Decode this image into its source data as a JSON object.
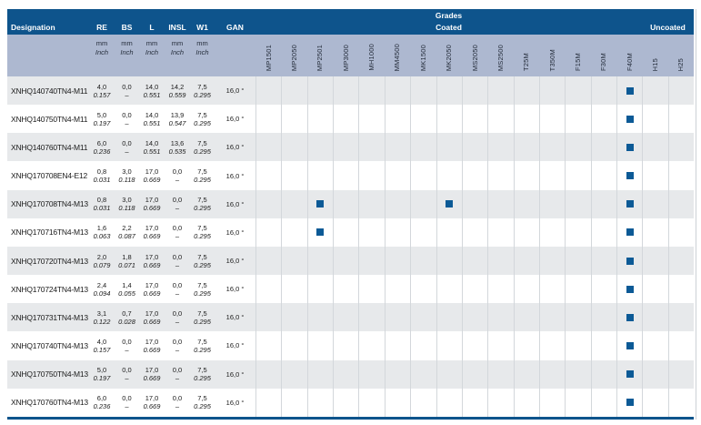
{
  "header": {
    "designation_label": "Designation",
    "dim_labels": [
      "RE",
      "BS",
      "L",
      "INSL",
      "W1"
    ],
    "gan_label": "GAN",
    "unit_mm": "mm",
    "unit_inch": "Inch",
    "grades_label": "Grades",
    "coated_label": "Coated",
    "uncoated_label": "Uncoated",
    "coated_grades": [
      "MP1501",
      "MP2050",
      "MP2501",
      "MP3000",
      "MH1000",
      "MM4500",
      "MK1500",
      "MK2050",
      "MS2050",
      "MS2500",
      "T25M",
      "T350M",
      "F15M",
      "F30M",
      "F40M"
    ],
    "uncoated_grades": [
      "H15",
      "H25"
    ]
  },
  "rows": [
    {
      "designation": "XNHQ140740TN4-M11",
      "dims": [
        {
          "mm": "4,0",
          "inch": "0.157"
        },
        {
          "mm": "0,0",
          "inch": "–"
        },
        {
          "mm": "14,0",
          "inch": "0.551"
        },
        {
          "mm": "14,2",
          "inch": "0.559"
        },
        {
          "mm": "7,5",
          "inch": "0.295"
        }
      ],
      "gan": "16,0 °",
      "marked_grades": [
        "F40M"
      ]
    },
    {
      "designation": "XNHQ140750TN4-M11",
      "dims": [
        {
          "mm": "5,0",
          "inch": "0.197"
        },
        {
          "mm": "0,0",
          "inch": "–"
        },
        {
          "mm": "14,0",
          "inch": "0.551"
        },
        {
          "mm": "13,9",
          "inch": "0.547"
        },
        {
          "mm": "7,5",
          "inch": "0.295"
        }
      ],
      "gan": "16,0 °",
      "marked_grades": [
        "F40M"
      ]
    },
    {
      "designation": "XNHQ140760TN4-M11",
      "dims": [
        {
          "mm": "6,0",
          "inch": "0.236"
        },
        {
          "mm": "0,0",
          "inch": "–"
        },
        {
          "mm": "14,0",
          "inch": "0.551"
        },
        {
          "mm": "13,6",
          "inch": "0.535"
        },
        {
          "mm": "7,5",
          "inch": "0.295"
        }
      ],
      "gan": "16,0 °",
      "marked_grades": [
        "F40M"
      ]
    },
    {
      "designation": "XNHQ170708EN4-E12",
      "dims": [
        {
          "mm": "0,8",
          "inch": "0.031"
        },
        {
          "mm": "3,0",
          "inch": "0.118"
        },
        {
          "mm": "17,0",
          "inch": "0.669"
        },
        {
          "mm": "0,0",
          "inch": "–"
        },
        {
          "mm": "7,5",
          "inch": "0.295"
        }
      ],
      "gan": "16,0 °",
      "marked_grades": [
        "F40M"
      ]
    },
    {
      "designation": "XNHQ170708TN4-M13",
      "dims": [
        {
          "mm": "0,8",
          "inch": "0.031"
        },
        {
          "mm": "3,0",
          "inch": "0.118"
        },
        {
          "mm": "17,0",
          "inch": "0.669"
        },
        {
          "mm": "0,0",
          "inch": "–"
        },
        {
          "mm": "7,5",
          "inch": "0.295"
        }
      ],
      "gan": "16,0 °",
      "marked_grades": [
        "MP2501",
        "MK2050",
        "F40M"
      ]
    },
    {
      "designation": "XNHQ170716TN4-M13",
      "dims": [
        {
          "mm": "1,6",
          "inch": "0.063"
        },
        {
          "mm": "2,2",
          "inch": "0.087"
        },
        {
          "mm": "17,0",
          "inch": "0.669"
        },
        {
          "mm": "0,0",
          "inch": "–"
        },
        {
          "mm": "7,5",
          "inch": "0.295"
        }
      ],
      "gan": "16,0 °",
      "marked_grades": [
        "MP2501",
        "F40M"
      ]
    },
    {
      "designation": "XNHQ170720TN4-M13",
      "dims": [
        {
          "mm": "2,0",
          "inch": "0.079"
        },
        {
          "mm": "1,8",
          "inch": "0.071"
        },
        {
          "mm": "17,0",
          "inch": "0.669"
        },
        {
          "mm": "0,0",
          "inch": "–"
        },
        {
          "mm": "7,5",
          "inch": "0.295"
        }
      ],
      "gan": "16,0 °",
      "marked_grades": [
        "F40M"
      ]
    },
    {
      "designation": "XNHQ170724TN4-M13",
      "dims": [
        {
          "mm": "2,4",
          "inch": "0.094"
        },
        {
          "mm": "1,4",
          "inch": "0.055"
        },
        {
          "mm": "17,0",
          "inch": "0.669"
        },
        {
          "mm": "0,0",
          "inch": "–"
        },
        {
          "mm": "7,5",
          "inch": "0.295"
        }
      ],
      "gan": "16,0 °",
      "marked_grades": [
        "F40M"
      ]
    },
    {
      "designation": "XNHQ170731TN4-M13",
      "dims": [
        {
          "mm": "3,1",
          "inch": "0.122"
        },
        {
          "mm": "0,7",
          "inch": "0.028"
        },
        {
          "mm": "17,0",
          "inch": "0.669"
        },
        {
          "mm": "0,0",
          "inch": "–"
        },
        {
          "mm": "7,5",
          "inch": "0.295"
        }
      ],
      "gan": "16,0 °",
      "marked_grades": [
        "F40M"
      ]
    },
    {
      "designation": "XNHQ170740TN4-M13",
      "dims": [
        {
          "mm": "4,0",
          "inch": "0.157"
        },
        {
          "mm": "0,0",
          "inch": "–"
        },
        {
          "mm": "17,0",
          "inch": "0.669"
        },
        {
          "mm": "0,0",
          "inch": "–"
        },
        {
          "mm": "7,5",
          "inch": "0.295"
        }
      ],
      "gan": "16,0 °",
      "marked_grades": [
        "F40M"
      ]
    },
    {
      "designation": "XNHQ170750TN4-M13",
      "dims": [
        {
          "mm": "5,0",
          "inch": "0.197"
        },
        {
          "mm": "0,0",
          "inch": "–"
        },
        {
          "mm": "17,0",
          "inch": "0.669"
        },
        {
          "mm": "0,0",
          "inch": "–"
        },
        {
          "mm": "7,5",
          "inch": "0.295"
        }
      ],
      "gan": "16,0 °",
      "marked_grades": [
        "F40M"
      ]
    },
    {
      "designation": "XNHQ170760TN4-M13",
      "dims": [
        {
          "mm": "6,0",
          "inch": "0.236"
        },
        {
          "mm": "0,0",
          "inch": "–"
        },
        {
          "mm": "17,0",
          "inch": "0.669"
        },
        {
          "mm": "0,0",
          "inch": "–"
        },
        {
          "mm": "7,5",
          "inch": "0.295"
        }
      ],
      "gan": "16,0 °",
      "marked_grades": [
        "F40M"
      ]
    }
  ],
  "colors": {
    "header_blue": "#0e548c",
    "subheader_blue": "#adb8d0",
    "row_alt_gray": "#e7e9eb",
    "square_blue": "#0c5a96",
    "grid_line": "#d3d7db"
  }
}
